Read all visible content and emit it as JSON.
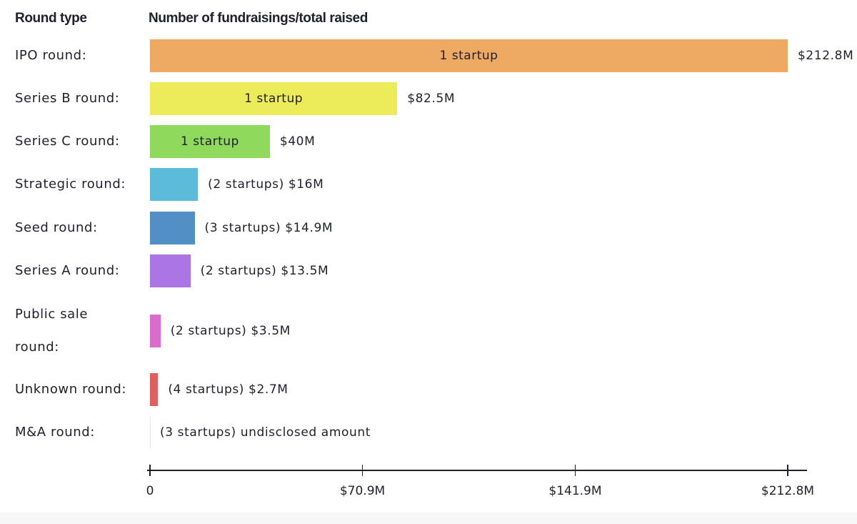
{
  "header": {
    "round_type": "Round type",
    "number_total": "Number of fundraisings/total raised"
  },
  "chart_data": {
    "type": "bar",
    "orientation": "horizontal",
    "title": "",
    "xlabel": "",
    "ylabel": "Round type",
    "xlim": [
      0,
      212.8
    ],
    "x_ticks": [
      0,
      70.9,
      141.9,
      212.8
    ],
    "x_tick_labels": [
      "0",
      "$70.9M",
      "$141.9M",
      "$212.8M"
    ],
    "categories": [
      "IPO round:",
      "Series B round:",
      "Series C round:",
      "Strategic round:",
      "Seed round:",
      "Series A round:",
      "Public sale round:",
      "Unknown round:",
      "M&A round:"
    ],
    "values": [
      212.8,
      82.5,
      40,
      16,
      14.9,
      13.5,
      3.5,
      2.7,
      0
    ],
    "colors": [
      "#eeaa62",
      "#ecec5a",
      "#8fd95d",
      "#5bbbd8",
      "#528fc4",
      "#ab76e3",
      "#db6ccc",
      "#e06060",
      "#e6e6e6"
    ],
    "inside_labels": [
      "1 startup",
      "1 startup",
      "1 startup",
      "",
      "",
      "",
      "",
      "",
      ""
    ],
    "outside_labels": [
      "$212.8M",
      "$82.5M",
      "$40M",
      "(2 startups) $16M",
      "(3 startups) $14.9M",
      "(2 startups) $13.5M",
      "(2 startups) $3.5M",
      "(4 startups) $2.7M",
      "(3 startups) undisclosed amount"
    ]
  }
}
